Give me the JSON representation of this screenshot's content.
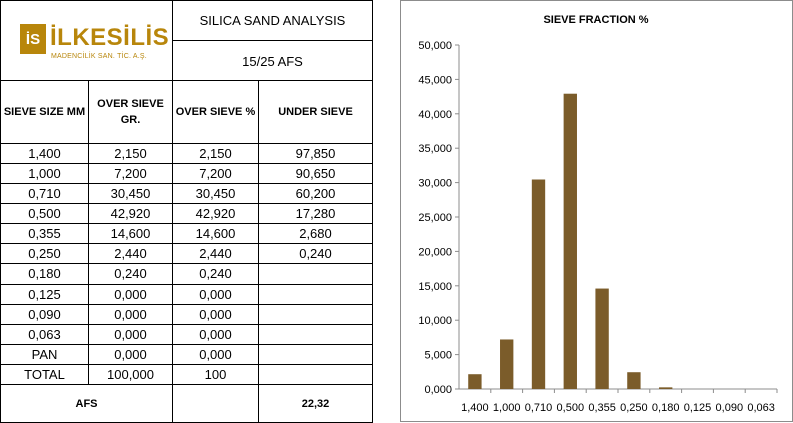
{
  "logo": {
    "mark": "İS",
    "name": "İLKESİLİS",
    "subtitle": "MADENCİLİK SAN. TİC. A.Ş.",
    "color": "#b8860b"
  },
  "header": {
    "title": "SILICA SAND ANALYSIS",
    "subtitle": "15/25 AFS"
  },
  "table": {
    "columns": [
      "SIEVE SIZE MM",
      "OVER SIEVE\nGR.",
      "OVER SIEVE %",
      "UNDER SIEVE"
    ],
    "rows": [
      [
        "1,400",
        "2,150",
        "2,150",
        "97,850"
      ],
      [
        "1,000",
        "7,200",
        "7,200",
        "90,650"
      ],
      [
        "0,710",
        "30,450",
        "30,450",
        "60,200"
      ],
      [
        "0,500",
        "42,920",
        "42,920",
        "17,280"
      ],
      [
        "0,355",
        "14,600",
        "14,600",
        "2,680"
      ],
      [
        "0,250",
        "2,440",
        "2,440",
        "0,240"
      ],
      [
        "0,180",
        "0,240",
        "0,240",
        ""
      ],
      [
        "0,125",
        "0,000",
        "0,000",
        ""
      ],
      [
        "0,090",
        "0,000",
        "0,000",
        ""
      ],
      [
        "0,063",
        "0,000",
        "0,000",
        ""
      ],
      [
        "PAN",
        "0,000",
        "0,000",
        ""
      ],
      [
        "TOTAL",
        "100,000",
        "100",
        ""
      ]
    ],
    "afs_label": "AFS",
    "afs_value": "22,32"
  },
  "chart_data": {
    "type": "bar",
    "title": "SIEVE FRACTION %",
    "categories": [
      "1,400",
      "1,000",
      "0,710",
      "0,500",
      "0,355",
      "0,250",
      "0,180",
      "0,125",
      "0,090",
      "0,063"
    ],
    "values": [
      2.15,
      7.2,
      30.45,
      42.92,
      14.6,
      2.44,
      0.24,
      0,
      0,
      0
    ],
    "yticks": [
      "0,000",
      "5,000",
      "10,000",
      "15,000",
      "20,000",
      "25,000",
      "30,000",
      "35,000",
      "40,000",
      "45,000",
      "50,000"
    ],
    "ylim": [
      0,
      50
    ],
    "grid": false,
    "legend": "none",
    "bar_color": "#7b5c2a"
  }
}
